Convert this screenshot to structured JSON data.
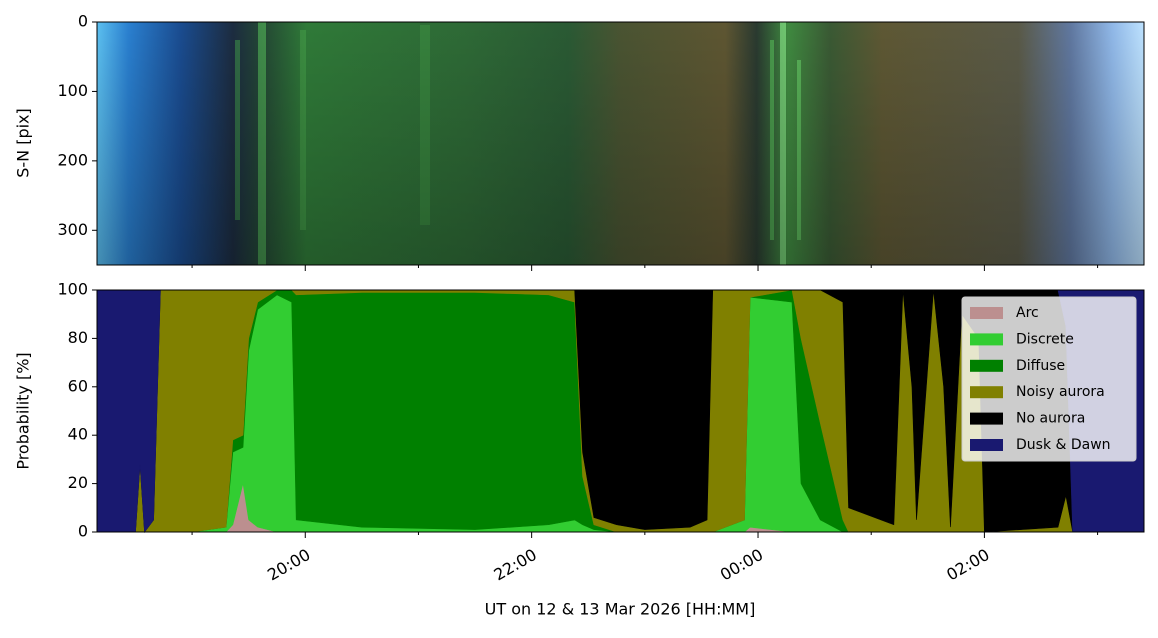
{
  "chart_data": [
    {
      "type": "image",
      "ylabel": "S-N [pix]",
      "ylim": [
        350,
        0
      ],
      "yticks": [
        0,
        100,
        200,
        300
      ],
      "xlim": [
        18.16,
        27.41
      ],
      "xticks": [
        20,
        22,
        24,
        26
      ],
      "xminorticks": [
        19,
        21,
        23,
        25,
        27
      ]
    },
    {
      "type": "stackplot",
      "ylabel": "Probability [%]",
      "xlabel": "UT on 12 & 13 Mar 2026 [HH:MM]",
      "xlim": [
        18.16,
        27.41
      ],
      "xticks": [
        {
          "value": 20,
          "label": "20:00"
        },
        {
          "value": 22,
          "label": "22:00"
        },
        {
          "value": 24,
          "label": "00:00"
        },
        {
          "value": 26,
          "label": "02:00"
        }
      ],
      "xminorticks": [
        19,
        21,
        23,
        25,
        27
      ],
      "ylim": [
        0,
        100
      ],
      "yticks": [
        0,
        20,
        40,
        60,
        80,
        100
      ],
      "legend": "upper right",
      "x": [
        18.16,
        18.5,
        18.54,
        18.58,
        18.66,
        18.72,
        19.0,
        19.3,
        19.36,
        19.45,
        19.5,
        19.58,
        19.75,
        19.88,
        19.92,
        20.5,
        21.5,
        22.15,
        22.38,
        22.45,
        22.55,
        22.75,
        23.0,
        23.4,
        23.55,
        23.6,
        23.88,
        23.93,
        24.3,
        24.38,
        24.55,
        24.75,
        24.8,
        25.2,
        25.28,
        25.36,
        25.4,
        25.55,
        25.64,
        25.7,
        25.8,
        25.95,
        26.0,
        26.65,
        26.72,
        26.78,
        27.41
      ],
      "series": [
        {
          "name": "Arc",
          "color": "#bc8f8f",
          "values": [
            0,
            0,
            0,
            0,
            0,
            0,
            0,
            0,
            3,
            20,
            5,
            2,
            0,
            0,
            0,
            0,
            0,
            0,
            0,
            0,
            0,
            0,
            0,
            0,
            0,
            0,
            0,
            2,
            0,
            0,
            0,
            0,
            0,
            0,
            0,
            0,
            0,
            0,
            0,
            0,
            0,
            0,
            0,
            0,
            0,
            0,
            0
          ]
        },
        {
          "name": "Discrete",
          "color": "#32cd32",
          "values": [
            0,
            0,
            0,
            0,
            0,
            0,
            0,
            2,
            30,
            15,
            70,
            90,
            98,
            95,
            5,
            2,
            1,
            3,
            5,
            3,
            1,
            0,
            0,
            0,
            0,
            0,
            5,
            95,
            95,
            20,
            5,
            0,
            0,
            0,
            0,
            0,
            0,
            0,
            0,
            0,
            0,
            0,
            0,
            0,
            0,
            0,
            0
          ]
        },
        {
          "name": "Diffuse",
          "color": "#008000",
          "values": [
            0,
            0,
            0,
            0,
            0,
            0,
            0,
            0,
            5,
            5,
            5,
            3,
            2,
            5,
            93,
            97,
            98,
            95,
            90,
            20,
            2,
            0,
            0,
            0,
            0,
            0,
            0,
            0,
            5,
            60,
            40,
            5,
            0,
            0,
            0,
            0,
            0,
            0,
            0,
            0,
            0,
            0,
            0,
            0,
            0,
            0,
            0
          ]
        },
        {
          "name": "Noisy aurora",
          "color": "#808000",
          "values": [
            0,
            0,
            28,
            0,
            5,
            100,
            100,
            98,
            62,
            60,
            20,
            5,
            0,
            0,
            2,
            1,
            1,
            2,
            5,
            10,
            3,
            3,
            1,
            2,
            5,
            100,
            95,
            3,
            0,
            20,
            55,
            90,
            10,
            3,
            100,
            60,
            5,
            100,
            60,
            2,
            90,
            80,
            0,
            2,
            15,
            0,
            0
          ]
        },
        {
          "name": "No aurora",
          "color": "#000000",
          "values": [
            0,
            0,
            0,
            0,
            0,
            0,
            0,
            0,
            0,
            0,
            0,
            0,
            0,
            0,
            0,
            0,
            0,
            0,
            0,
            67,
            94,
            97,
            99,
            98,
            95,
            0,
            0,
            0,
            0,
            0,
            0,
            5,
            90,
            97,
            0,
            40,
            95,
            0,
            40,
            98,
            10,
            20,
            100,
            98,
            70,
            0,
            0
          ]
        },
        {
          "name": "Dusk & Dawn",
          "color": "#191970",
          "values": [
            100,
            100,
            72,
            100,
            95,
            0,
            0,
            0,
            0,
            0,
            0,
            0,
            0,
            0,
            0,
            0,
            0,
            0,
            0,
            0,
            0,
            0,
            0,
            0,
            0,
            0,
            0,
            0,
            0,
            0,
            0,
            0,
            0,
            0,
            0,
            0,
            0,
            0,
            0,
            0,
            0,
            0,
            0,
            0,
            15,
            100,
            100
          ]
        }
      ]
    }
  ]
}
